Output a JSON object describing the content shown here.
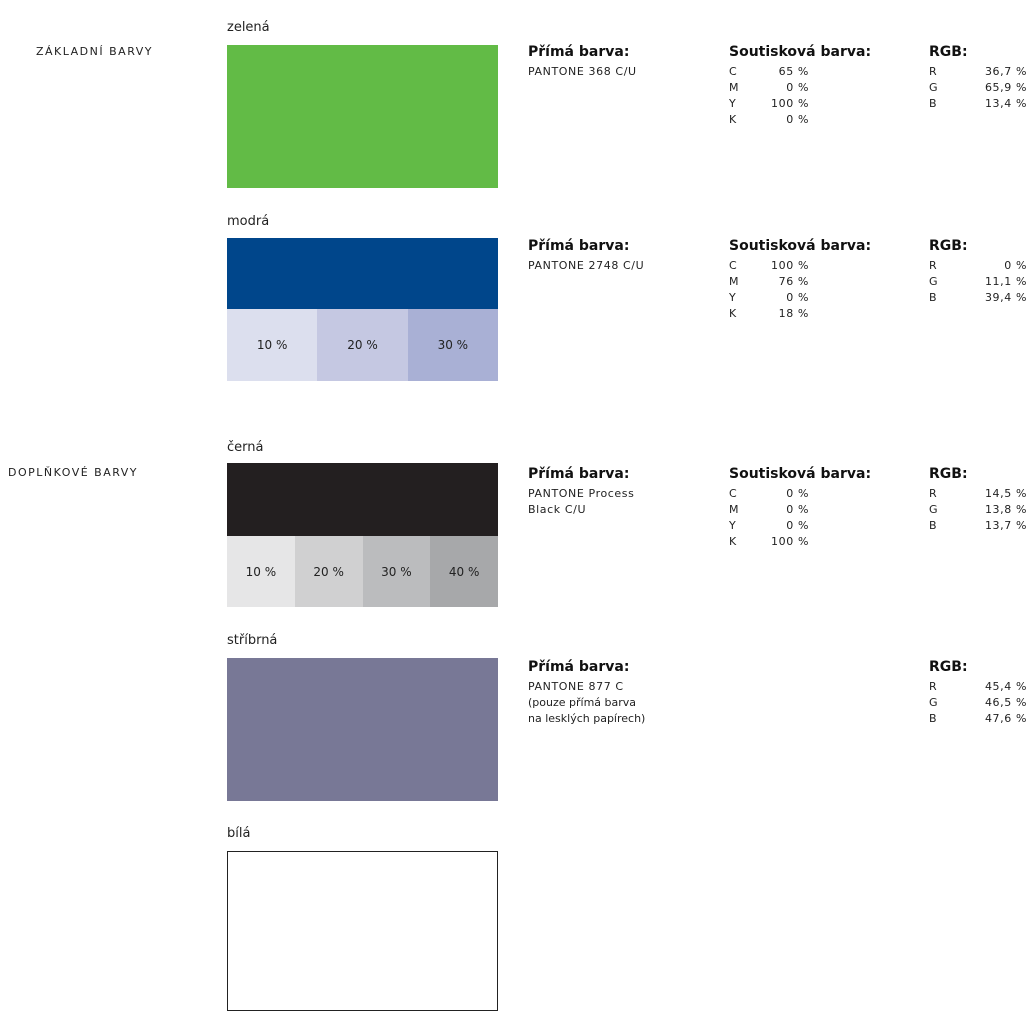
{
  "sections": {
    "basic": "ZÁKLADNÍ BARVY",
    "supplementary": "DOPLŇKOVÉ BARVY"
  },
  "labels": {
    "spot": "Přímá barva:",
    "process": "Soutisková barva:",
    "rgb": "RGB:"
  },
  "colors": [
    {
      "name": "zelená",
      "swatch": "#62bb46",
      "pantone": [
        "PANTONE 368 C/U"
      ],
      "cmyk": [
        [
          "C",
          "65 %"
        ],
        [
          "M",
          "0 %"
        ],
        [
          "Y",
          "100 %"
        ],
        [
          "K",
          "0 %"
        ]
      ],
      "rgb": [
        [
          "R",
          "36,7 %"
        ],
        [
          "G",
          "65,9 %"
        ],
        [
          "B",
          "13,4 %"
        ]
      ]
    },
    {
      "name": "modrá",
      "swatch": "#00468b",
      "tints": [
        {
          "label": "10 %",
          "color": "#dcdfee"
        },
        {
          "label": "20 %",
          "color": "#c5c8e2"
        },
        {
          "label": "30 %",
          "color": "#a9b0d5"
        }
      ],
      "pantone": [
        "PANTONE 2748 C/U"
      ],
      "cmyk": [
        [
          "C",
          "100 %"
        ],
        [
          "M",
          "76 %"
        ],
        [
          "Y",
          "0 %"
        ],
        [
          "K",
          "18 %"
        ]
      ],
      "rgb": [
        [
          "R",
          "0 %"
        ],
        [
          "G",
          "11,1 %"
        ],
        [
          "B",
          "39,4 %"
        ]
      ]
    },
    {
      "name": "černá",
      "swatch": "#231f20",
      "tints": [
        {
          "label": "10 %",
          "color": "#e6e6e7"
        },
        {
          "label": "20 %",
          "color": "#d0d0d1"
        },
        {
          "label": "30 %",
          "color": "#bbbcbe"
        },
        {
          "label": "40 %",
          "color": "#a7a8aa"
        }
      ],
      "pantone": [
        "PANTONE Process",
        "Black C/U"
      ],
      "cmyk": [
        [
          "C",
          "0 %"
        ],
        [
          "M",
          "0 %"
        ],
        [
          "Y",
          "0 %"
        ],
        [
          "K",
          "100 %"
        ]
      ],
      "rgb": [
        [
          "R",
          "14,5 %"
        ],
        [
          "G",
          "13,8 %"
        ],
        [
          "B",
          "13,7 %"
        ]
      ]
    },
    {
      "name": "stříbrná",
      "swatch": "#787896",
      "pantone": [
        "PANTONE 877 C",
        "(pouze přímá barva",
        "na lesklých papírech)"
      ],
      "rgb": [
        [
          "R",
          "45,4 %"
        ],
        [
          "G",
          "46,5 %"
        ],
        [
          "B",
          "47,6 %"
        ]
      ]
    },
    {
      "name": "bílá",
      "swatch": "#ffffff"
    }
  ]
}
